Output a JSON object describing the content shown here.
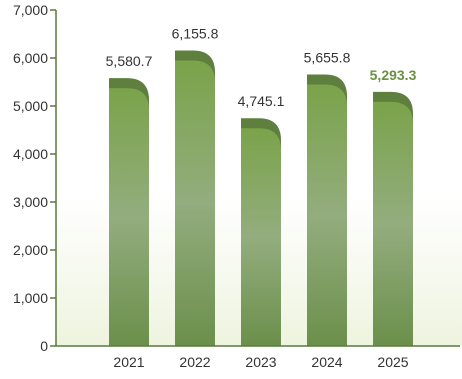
{
  "chart_data": {
    "type": "bar",
    "title": "",
    "xlabel": "",
    "ylabel": "",
    "categories": [
      "2021",
      "2022",
      "2023",
      "2024",
      "2025"
    ],
    "values": [
      5580.7,
      6155.8,
      4745.1,
      5655.8,
      5293.3
    ],
    "data_labels": [
      "5,580.7",
      "6,155.8",
      "4,745.1",
      "5,655.8",
      "5,293.3"
    ],
    "highlight_index": 4,
    "ylim": [
      0,
      7000
    ],
    "yticks": [
      0,
      1000,
      2000,
      3000,
      4000,
      5000,
      6000,
      7000
    ],
    "ytick_labels": [
      "0",
      "1,000",
      "2,000",
      "3,000",
      "4,000",
      "5,000",
      "6,000",
      "7,000"
    ],
    "grid": false,
    "legend": "none",
    "colors": {
      "axis": "#5a7a3c",
      "bar_top": "#7aa34a",
      "bar_mid": "#92ad7c",
      "bar_bottom": "#6b8f4b",
      "bar_cap": "#5e7f3e",
      "highlight_label": "#6a9242",
      "background_bottom": "#eef4df"
    }
  }
}
